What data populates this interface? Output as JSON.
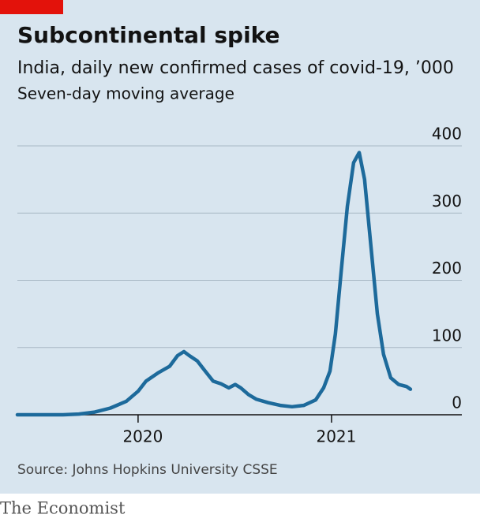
{
  "chart_data": {
    "type": "line",
    "title": "Subcontinental spike",
    "subtitle": "India, daily new confirmed cases of covid-19, ’000",
    "note": "Seven-day moving average",
    "source": "Source: Johns Hopkins University CSSE",
    "brand": "The Economist",
    "x": [
      2019.376,
      2019.612,
      2019.694,
      2019.776,
      2019.857,
      2019.939,
      2020.0,
      2020.041,
      2020.102,
      2020.163,
      2020.204,
      2020.237,
      2020.265,
      2020.306,
      2020.347,
      2020.388,
      2020.429,
      2020.469,
      2020.502,
      2020.531,
      2020.571,
      2020.612,
      2020.673,
      2020.735,
      2020.796,
      2020.857,
      2020.918,
      2020.959,
      2020.992,
      2021.02,
      2021.049,
      2021.082,
      2021.114,
      2021.143,
      2021.171,
      2021.204,
      2021.237,
      2021.269,
      2021.306,
      2021.347,
      2021.388,
      2021.408
    ],
    "series": [
      {
        "color": "#1d6a9b",
        "values": [
          0,
          0,
          1,
          4,
          10,
          20,
          35,
          50,
          62,
          72,
          88,
          94,
          88,
          80,
          65,
          50,
          46,
          40,
          45,
          40,
          30,
          23,
          18,
          14,
          12,
          14,
          22,
          40,
          65,
          120,
          210,
          310,
          375,
          390,
          350,
          250,
          150,
          90,
          55,
          45,
          42,
          38
        ]
      }
    ],
    "xlim": [
      2019.376,
      2021.49
    ],
    "xticks": [
      {
        "value": 2020,
        "label": "2020"
      },
      {
        "value": 2021,
        "label": "2021"
      }
    ],
    "ylim": [
      0,
      400
    ],
    "yticks": [
      0,
      100,
      200,
      300,
      400
    ],
    "grid": true
  }
}
